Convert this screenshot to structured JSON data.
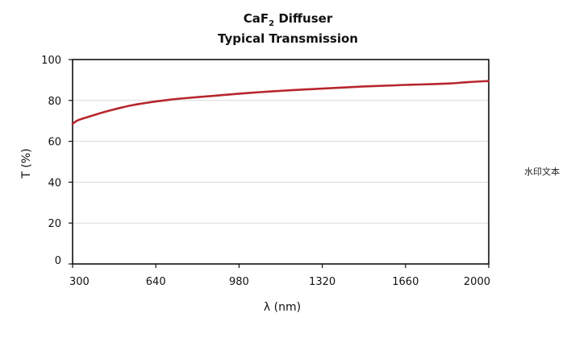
{
  "chart_data": {
    "type": "line",
    "title": {
      "formula_main": "CaF",
      "formula_subscript": "2",
      "formula_rest": " Diffuser",
      "line2": "Typical Transmission"
    },
    "xlabel": "λ (nm)",
    "ylabel": "T (%)",
    "xlim": [
      300,
      2000
    ],
    "ylim": [
      0,
      100
    ],
    "xticks": [
      300,
      640,
      980,
      1320,
      1660,
      2000
    ],
    "yticks": [
      0,
      20,
      40,
      60,
      80,
      100
    ],
    "grid": "horizontal",
    "series": [
      {
        "color": "#b7262e",
        "x": [
          300,
          320,
          360,
          400,
          450,
          500,
          550,
          600,
          640,
          700,
          760,
          820,
          900,
          980,
          1060,
          1150,
          1240,
          1320,
          1420,
          1500,
          1600,
          1660,
          1750,
          1840,
          1920,
          2000
        ],
        "y": [
          68.5,
          70.2,
          71.8,
          73.3,
          75.0,
          76.5,
          77.8,
          78.8,
          79.5,
          80.4,
          81.1,
          81.7,
          82.5,
          83.3,
          84.0,
          84.7,
          85.3,
          85.8,
          86.4,
          86.9,
          87.3,
          87.6,
          87.9,
          88.3,
          89.0,
          89.5
        ]
      }
    ]
  },
  "watermark": "水印文本"
}
